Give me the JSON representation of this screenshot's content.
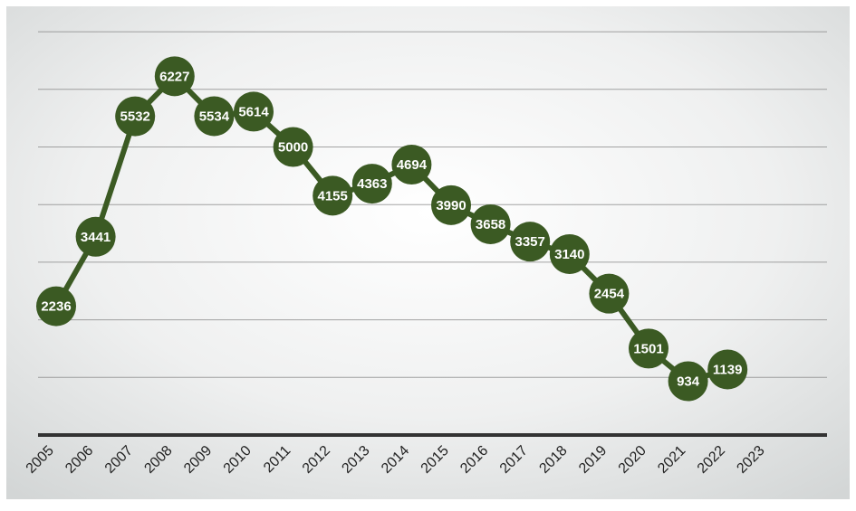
{
  "chart_data": {
    "type": "line",
    "title": "",
    "xlabel": "",
    "ylabel": "",
    "categories": [
      "2005",
      "2006",
      "2007",
      "2008",
      "2009",
      "2010",
      "2011",
      "2012",
      "2013",
      "2014",
      "2015",
      "2016",
      "2017",
      "2018",
      "2019",
      "2020",
      "2021",
      "2022",
      "2023"
    ],
    "series": [
      {
        "values": [
          2236,
          3441,
          5532,
          6227,
          5534,
          5614,
          5000,
          4155,
          4363,
          4694,
          3990,
          3658,
          3357,
          3140,
          2454,
          1501,
          934,
          1139,
          null
        ]
      }
    ],
    "ylim": [
      0,
      7000
    ],
    "grid": true,
    "legend": "none",
    "colors": {
      "line": "#3b5a23",
      "marker": "#3b5a23",
      "label": "#ffffff",
      "gridline": "#7f7f7f",
      "axis": "#333333",
      "background_light": "#ffffff",
      "background_dark": "#d3d6d6"
    }
  }
}
